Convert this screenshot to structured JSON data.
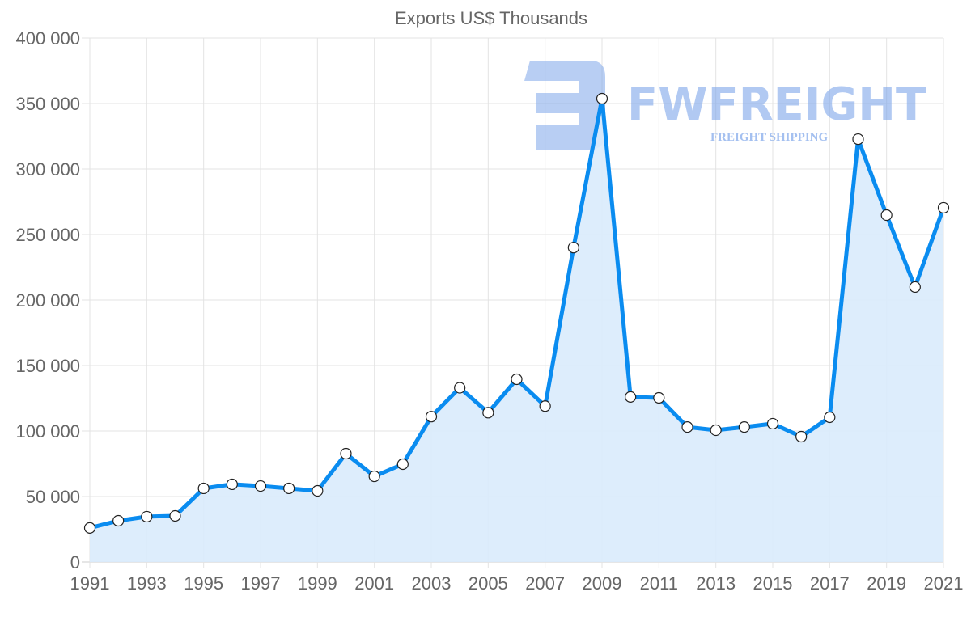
{
  "chart_data": {
    "type": "area",
    "title": "Exports US$ Thousands",
    "xlabel": "",
    "ylabel": "",
    "x": [
      1991,
      1992,
      1993,
      1994,
      1995,
      1996,
      1997,
      1998,
      1999,
      2000,
      2001,
      2002,
      2003,
      2004,
      2005,
      2006,
      2007,
      2008,
      2009,
      2010,
      2011,
      2012,
      2013,
      2014,
      2015,
      2016,
      2017,
      2018,
      2019,
      2020,
      2021
    ],
    "series": [
      {
        "name": "Exports US$ Thousands",
        "values": [
          26000,
          31500,
          34600,
          35200,
          56200,
          59300,
          58000,
          56200,
          54300,
          82700,
          65400,
          74700,
          111000,
          133000,
          114000,
          139500,
          119000,
          240000,
          353700,
          126000,
          125300,
          103000,
          100600,
          103000,
          105600,
          95700,
          110500,
          322800,
          264800,
          209900,
          270400
        ]
      }
    ],
    "ylim": [
      0,
      400000
    ],
    "xlim": [
      1991,
      2021
    ],
    "y_ticks": [
      0,
      50000,
      100000,
      150000,
      200000,
      250000,
      300000,
      350000,
      400000
    ],
    "y_tick_labels": [
      "0",
      "50 000",
      "100 000",
      "150 000",
      "200 000",
      "250 000",
      "300 000",
      "350 000",
      "400 000"
    ],
    "x_ticks": [
      1991,
      1993,
      1995,
      1997,
      1999,
      2001,
      2003,
      2005,
      2007,
      2009,
      2011,
      2013,
      2015,
      2017,
      2019,
      2021
    ],
    "x_tick_labels": [
      "1991",
      "1993",
      "1995",
      "1997",
      "1999",
      "2001",
      "2003",
      "2005",
      "2007",
      "2009",
      "2011",
      "2013",
      "2015",
      "2017",
      "2019",
      "2021"
    ],
    "grid": true,
    "legend": "none",
    "colors": {
      "line": "#0a8cf0",
      "fill": "#d9ebfc",
      "grid": "#e3e3e3",
      "point": "#ffffff"
    }
  },
  "watermark": {
    "brand": "FWFREIGHT",
    "tagline": "FREIGHT SHIPPING"
  }
}
